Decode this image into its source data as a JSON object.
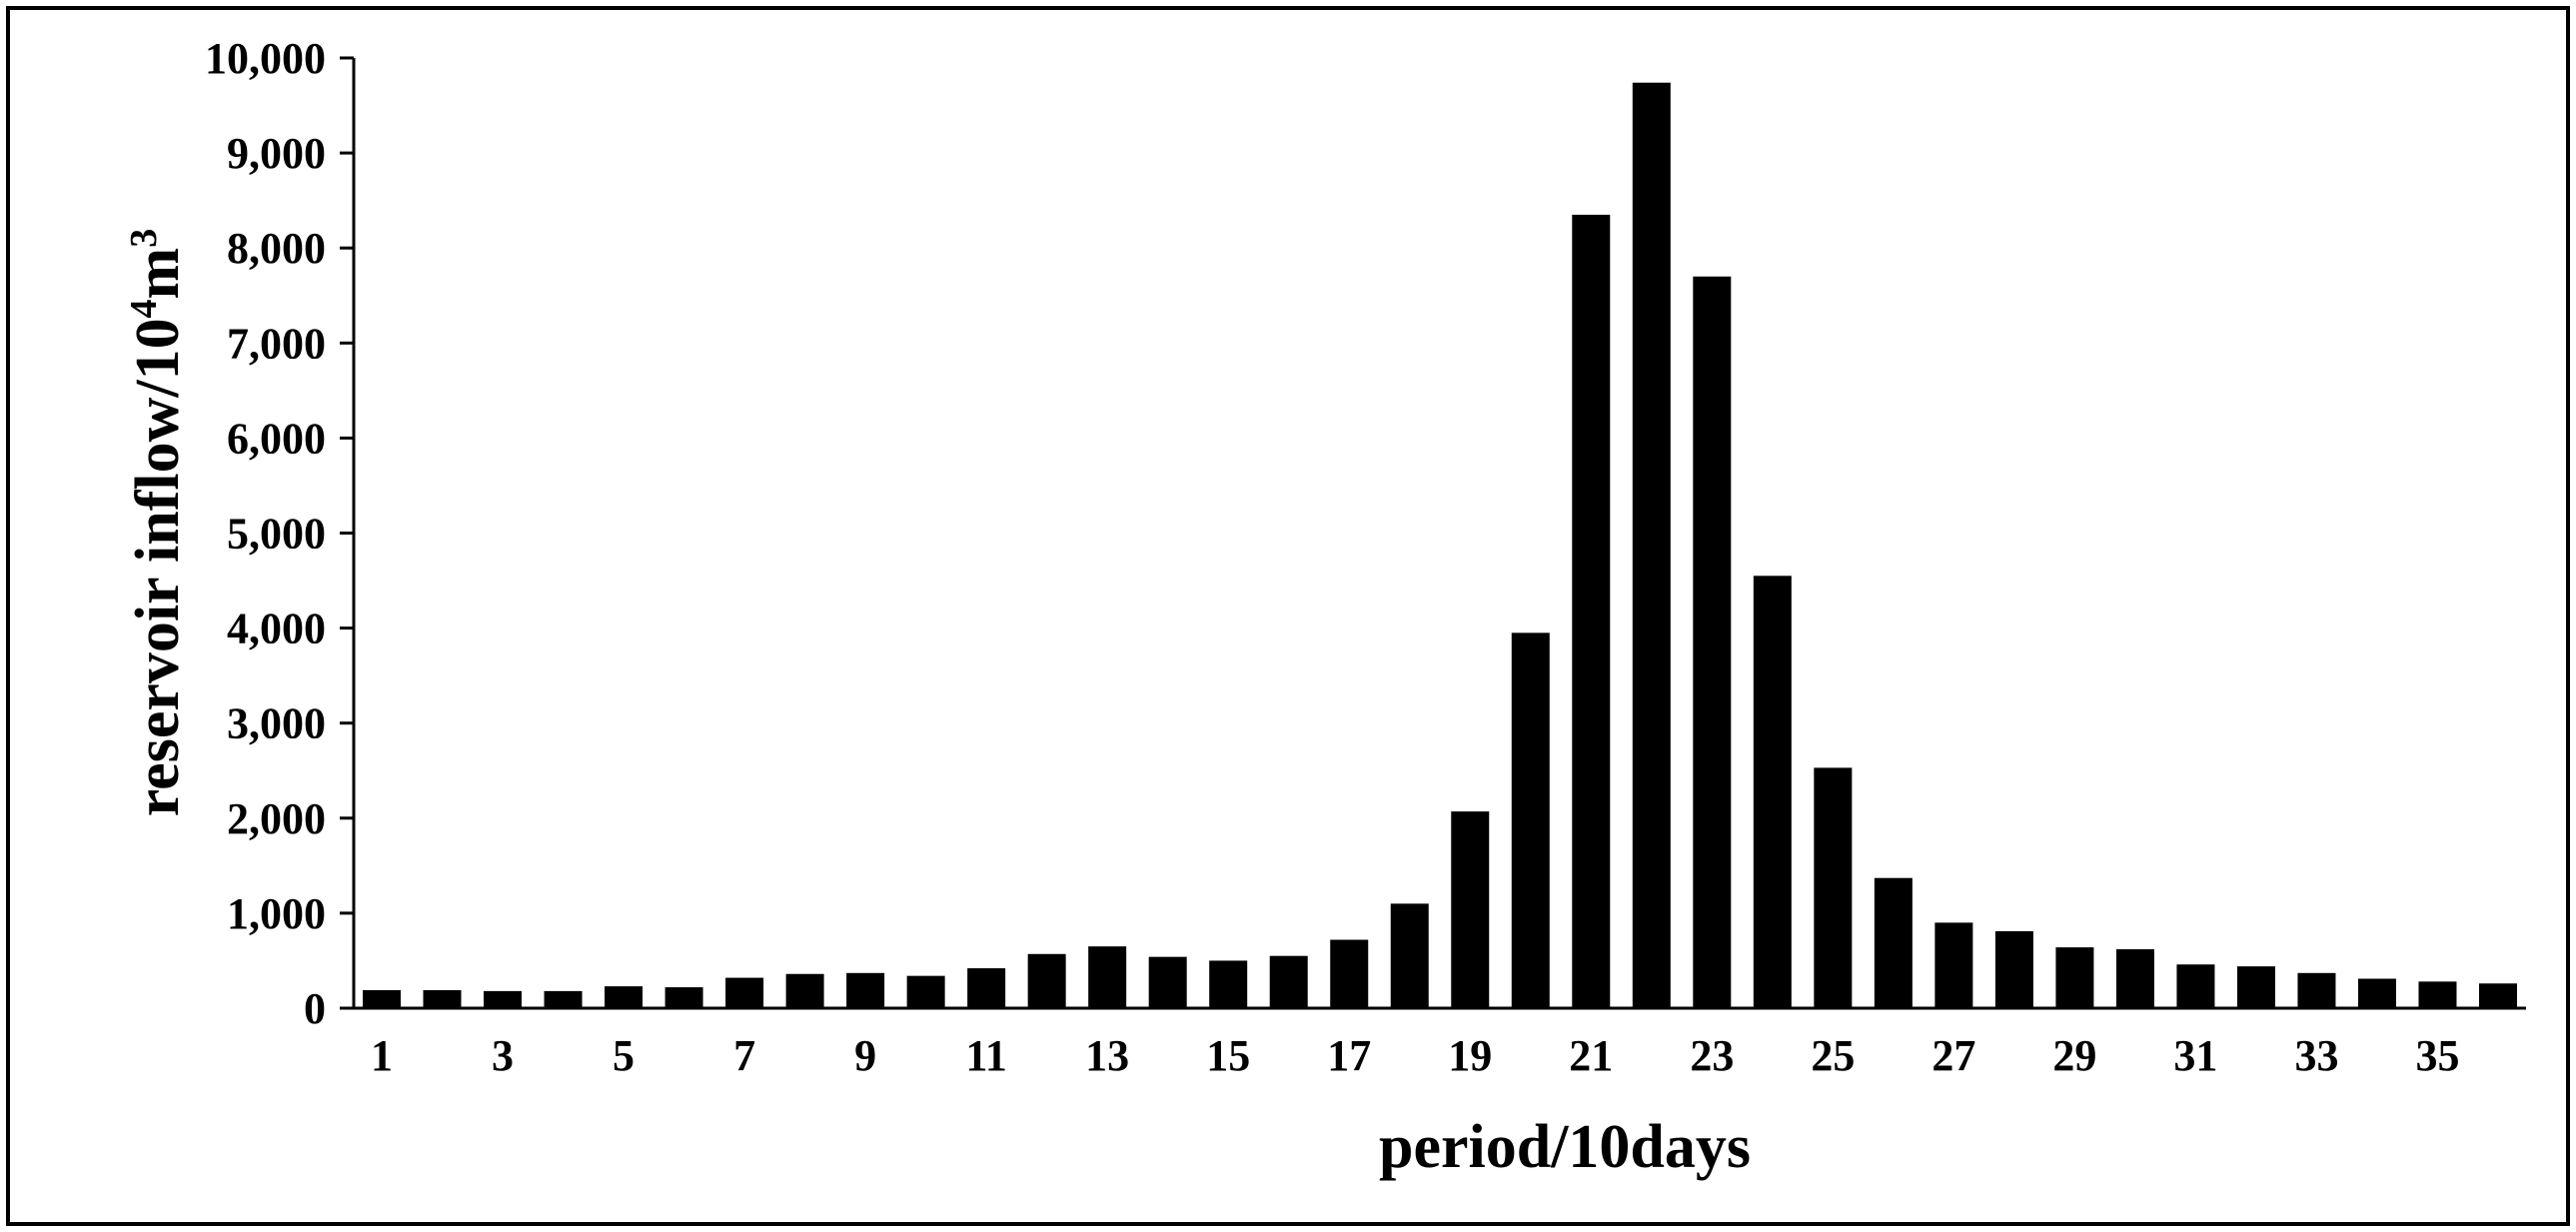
{
  "chart_data": {
    "type": "bar",
    "xlabel": "period/10days",
    "ylabel": {
      "prefix": "reservoir inflow/10",
      "sup1": "4",
      "mid": "m",
      "sup2": "3"
    },
    "ylim": [
      0,
      10000
    ],
    "yticks": [
      0,
      1000,
      2000,
      3000,
      4000,
      5000,
      6000,
      7000,
      8000,
      9000,
      10000
    ],
    "ytick_labels": [
      "0",
      "1,000",
      "2,000",
      "3,000",
      "4,000",
      "5,000",
      "6,000",
      "7,000",
      "8,000",
      "9,000",
      "10,000"
    ],
    "categories": [
      1,
      2,
      3,
      4,
      5,
      6,
      7,
      8,
      9,
      10,
      11,
      12,
      13,
      14,
      15,
      16,
      17,
      18,
      19,
      20,
      21,
      22,
      23,
      24,
      25,
      26,
      27,
      28,
      29,
      30,
      31,
      32,
      33,
      34,
      35,
      36
    ],
    "xtick_labels": [
      "1",
      "3",
      "5",
      "7",
      "9",
      "11",
      "13",
      "15",
      "17",
      "19",
      "21",
      "23",
      "25",
      "27",
      "29",
      "31",
      "33",
      "35"
    ],
    "values": [
      190,
      190,
      180,
      180,
      230,
      220,
      320,
      360,
      370,
      340,
      420,
      570,
      650,
      540,
      500,
      550,
      720,
      1100,
      2070,
      3950,
      8350,
      9740,
      7700,
      4550,
      2530,
      1370,
      900,
      810,
      640,
      620,
      460,
      440,
      370,
      310,
      280,
      260
    ],
    "grid": false,
    "legend": "none",
    "bar_color": "#000000"
  }
}
